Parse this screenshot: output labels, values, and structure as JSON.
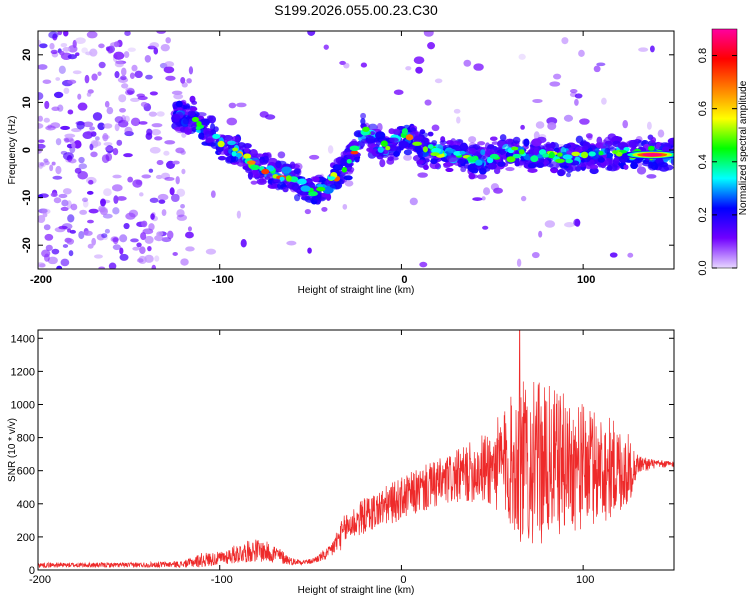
{
  "figure": {
    "title": "S199.2026.055.00.23.C30"
  },
  "chart_data": [
    {
      "type": "heatmap",
      "name": "spectrogram",
      "xlabel": "Height of straight line (km)",
      "ylabel": "Frequency (Hz)",
      "xlim": [
        -200,
        150
      ],
      "ylim": [
        -25,
        25
      ],
      "xticks": [
        -200,
        -100,
        0,
        100
      ],
      "xtick_labels": [
        "-200",
        "-100",
        "0",
        "100"
      ],
      "yticks": [
        -20,
        -10,
        0,
        10,
        20
      ],
      "ytick_labels": [
        "-20",
        "-10",
        "0",
        "10",
        "20"
      ],
      "colorbar": {
        "label": "Normalized spectral amplitude",
        "range": [
          0,
          0.9
        ],
        "ticks": [
          0.0,
          0.2,
          0.4,
          0.6,
          0.8
        ],
        "tick_labels": [
          "0.0",
          "0.2",
          "0.4",
          "0.6",
          "0.8"
        ],
        "colors": [
          "#e8d8ff",
          "#7000ff",
          "#0000ff",
          "#00ffff",
          "#00ff00",
          "#ffff00",
          "#ff8000",
          "#ff0000",
          "#ff00a0"
        ]
      },
      "ridge": {
        "x": [
          -120,
          -110,
          -100,
          -90,
          -80,
          -70,
          -60,
          -50,
          -45,
          -40,
          -35,
          -30,
          -25,
          -20,
          -15,
          -10,
          -5,
          0,
          5,
          10,
          20,
          30,
          40,
          50,
          60,
          70,
          80,
          90,
          100,
          110,
          120,
          130,
          140,
          150
        ],
        "y": [
          7,
          5,
          2,
          -1,
          -3,
          -5,
          -6,
          -8,
          -8.5,
          -7,
          -5,
          -3,
          1,
          4,
          2,
          0,
          1,
          3,
          3,
          0.5,
          -0.5,
          -1,
          -2,
          -1.5,
          -0.5,
          -1,
          -1,
          -1.5,
          -1.2,
          -0.8,
          -0.5,
          -1,
          -1,
          -1
        ]
      },
      "peak": {
        "x": 138,
        "y": -1,
        "amplitude": 0.9
      }
    },
    {
      "type": "line",
      "name": "snr",
      "xlabel": "Height of straight line (km)",
      "ylabel": "SNR (10 * v/v)",
      "xlim": [
        -200,
        150
      ],
      "ylim": [
        0,
        1450
      ],
      "xticks": [
        -200,
        -100,
        0,
        100
      ],
      "xtick_labels": [
        "-200",
        "-100",
        "0",
        "100"
      ],
      "yticks": [
        0,
        200,
        400,
        600,
        800,
        1000,
        1200,
        1400
      ],
      "ytick_labels": [
        "0",
        "200",
        "400",
        "600",
        "800",
        "1000",
        "1200",
        "1400"
      ],
      "color": "#ee2a2a",
      "envelope": {
        "x": [
          -200,
          -150,
          -120,
          -110,
          -100,
          -90,
          -80,
          -70,
          -60,
          -50,
          -40,
          -35,
          -30,
          -20,
          -10,
          0,
          10,
          20,
          30,
          40,
          50,
          55,
          60,
          65,
          70,
          80,
          90,
          100,
          110,
          120,
          125,
          130,
          140,
          150
        ],
        "mean": [
          30,
          30,
          35,
          60,
          70,
          100,
          120,
          100,
          50,
          50,
          100,
          180,
          260,
          330,
          380,
          430,
          480,
          520,
          560,
          600,
          620,
          640,
          650,
          650,
          650,
          640,
          650,
          620,
          620,
          610,
          600,
          640,
          640,
          640
        ],
        "spread": [
          15,
          15,
          20,
          45,
          40,
          60,
          70,
          60,
          20,
          15,
          40,
          80,
          100,
          110,
          120,
          130,
          140,
          150,
          160,
          190,
          250,
          320,
          400,
          500,
          500,
          480,
          420,
          380,
          340,
          280,
          220,
          60,
          25,
          20
        ]
      },
      "peak": {
        "x": 65,
        "y": 1450
      }
    }
  ]
}
